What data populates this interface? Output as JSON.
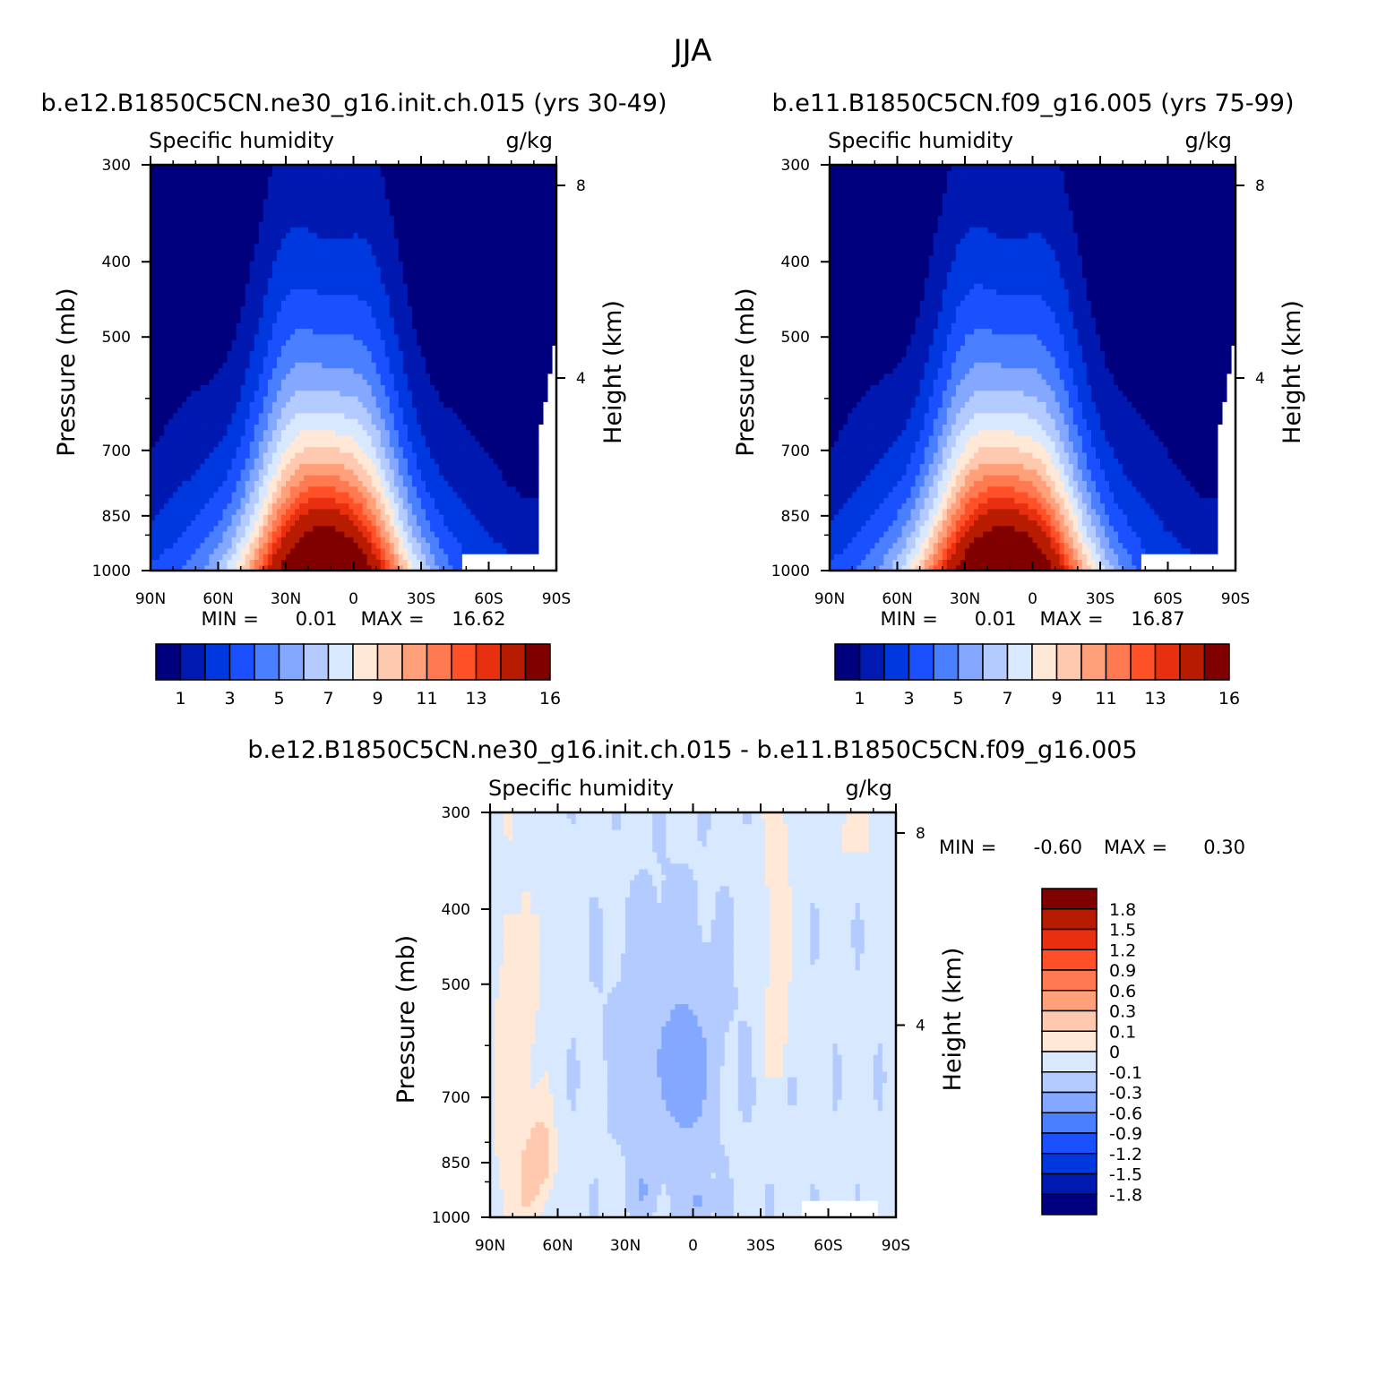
{
  "figure_title": "JJA",
  "chart_data": [
    {
      "type": "contour",
      "panel": "top-left",
      "case_title": "b.e12.B1850C5CN.ne30_g16.init.ch.015 (yrs 30-49)",
      "left_string": "Specific humidity",
      "right_string": "g/kg",
      "ylabel": "Pressure (mb)",
      "y2label": "Height (km)",
      "x_ticks": [
        "90N",
        "60N",
        "30N",
        "0",
        "30S",
        "60S",
        "90S"
      ],
      "y_ticks": [
        "300",
        "400",
        "500",
        "700",
        "850",
        "1000"
      ],
      "y2_ticks": [
        "8",
        "4"
      ],
      "ylim": [
        1000,
        300
      ],
      "min_label": "MIN =",
      "min_value": "0.01",
      "max_label": "MAX =",
      "max_value": "16.62",
      "colorbar_labels": [
        "1",
        "3",
        "5",
        "7",
        "9",
        "11",
        "13",
        "16"
      ],
      "colorbar_levels": [
        1,
        2,
        3,
        4,
        5,
        6,
        7,
        8,
        9,
        10,
        11,
        12,
        13,
        14,
        16
      ],
      "colors": [
        "#00007f",
        "#0019b0",
        "#0038e0",
        "#1a50ff",
        "#4a80ff",
        "#84a8ff",
        "#b4cbff",
        "#d7e8ff",
        "#ffe8d6",
        "#ffc9b0",
        "#ffa07a",
        "#ff7a50",
        "#ff5028",
        "#e83010",
        "#b81c00",
        "#800000"
      ]
    },
    {
      "type": "contour",
      "panel": "top-right",
      "case_title": "b.e11.B1850C5CN.f09_g16.005 (yrs 75-99)",
      "left_string": "Specific humidity",
      "right_string": "g/kg",
      "ylabel": "Pressure (mb)",
      "y2label": "Height (km)",
      "x_ticks": [
        "90N",
        "60N",
        "30N",
        "0",
        "30S",
        "60S",
        "90S"
      ],
      "y_ticks": [
        "300",
        "400",
        "500",
        "700",
        "850",
        "1000"
      ],
      "y2_ticks": [
        "8",
        "4"
      ],
      "ylim": [
        1000,
        300
      ],
      "min_label": "MIN =",
      "min_value": "0.01",
      "max_label": "MAX =",
      "max_value": "16.87",
      "colorbar_labels": [
        "1",
        "3",
        "5",
        "7",
        "9",
        "11",
        "13",
        "16"
      ],
      "colorbar_levels": [
        1,
        2,
        3,
        4,
        5,
        6,
        7,
        8,
        9,
        10,
        11,
        12,
        13,
        14,
        16
      ],
      "colors": [
        "#00007f",
        "#0019b0",
        "#0038e0",
        "#1a50ff",
        "#4a80ff",
        "#84a8ff",
        "#b4cbff",
        "#d7e8ff",
        "#ffe8d6",
        "#ffc9b0",
        "#ffa07a",
        "#ff7a50",
        "#ff5028",
        "#e83010",
        "#b81c00",
        "#800000"
      ]
    },
    {
      "type": "contour",
      "panel": "bottom-difference",
      "case_title": "b.e12.B1850C5CN.ne30_g16.init.ch.015 - b.e11.B1850C5CN.f09_g16.005",
      "left_string": "Specific humidity",
      "right_string": "g/kg",
      "ylabel": "Pressure (mb)",
      "y2label": "Height (km)",
      "x_ticks": [
        "90N",
        "60N",
        "30N",
        "0",
        "30S",
        "60S",
        "90S"
      ],
      "y_ticks": [
        "300",
        "400",
        "500",
        "700",
        "850",
        "1000"
      ],
      "y2_ticks": [
        "8",
        "4"
      ],
      "ylim": [
        1000,
        300
      ],
      "min_label": "MIN =",
      "min_value": "-0.60",
      "max_label": "MAX =",
      "max_value": "0.30",
      "colorbar_labels": [
        "1.8",
        "1.5",
        "1.2",
        "0.9",
        "0.6",
        "0.3",
        "0.1",
        "0",
        "-0.1",
        "-0.3",
        "-0.6",
        "-0.9",
        "-1.2",
        "-1.5",
        "-1.8"
      ],
      "colorbar_levels": [
        -1.8,
        -1.5,
        -1.2,
        -0.9,
        -0.6,
        -0.3,
        -0.1,
        0,
        0.1,
        0.3,
        0.6,
        0.9,
        1.2,
        1.5,
        1.8
      ],
      "colors": [
        "#800000",
        "#b81c00",
        "#e83010",
        "#ff5028",
        "#ff7a50",
        "#ffa07a",
        "#ffc9b0",
        "#ffe8d6",
        "#d7e8ff",
        "#b4cbff",
        "#84a8ff",
        "#4a80ff",
        "#1a50ff",
        "#0038e0",
        "#0019b0",
        "#00007f"
      ]
    }
  ]
}
